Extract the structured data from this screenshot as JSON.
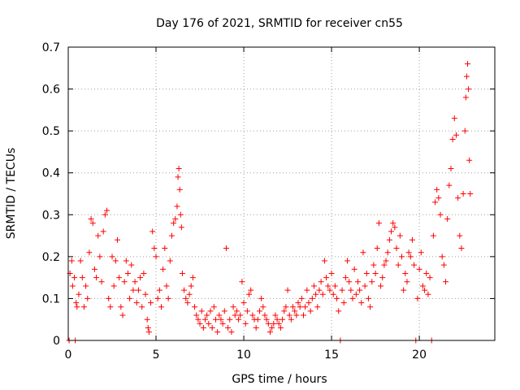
{
  "chart_data": {
    "type": "scatter",
    "title": "Day 176 of 2021, SRMTID for receiver cn55",
    "xlabel": "GPS time / hours",
    "ylabel": "SRMTID / TECUs",
    "xlim": [
      0,
      24.3
    ],
    "ylim": [
      0,
      0.7
    ],
    "xticks": [
      0,
      5,
      10,
      15,
      20
    ],
    "xtick_labels": [
      "0",
      "5",
      "10",
      "15",
      "20"
    ],
    "yticks": [
      0,
      0.1,
      0.2,
      0.3,
      0.4,
      0.5,
      0.6,
      0.7
    ],
    "ytick_labels": [
      "0",
      "0.1",
      "0.2",
      "0.3",
      "0.4",
      "0.5",
      "0.6",
      "0.7"
    ],
    "grid": true,
    "marker": "plus",
    "color": "#ff0000",
    "series": [
      {
        "name": "SRMTID cn55",
        "points": [
          [
            0.05,
            0.0
          ],
          [
            0.1,
            0.16
          ],
          [
            0.2,
            0.19
          ],
          [
            0.25,
            0.13
          ],
          [
            0.35,
            0.15
          ],
          [
            0.4,
            0.0
          ],
          [
            0.45,
            0.09
          ],
          [
            0.5,
            0.08
          ],
          [
            0.6,
            0.11
          ],
          [
            0.7,
            0.19
          ],
          [
            0.8,
            0.15
          ],
          [
            0.9,
            0.08
          ],
          [
            1.0,
            0.13
          ],
          [
            1.1,
            0.1
          ],
          [
            1.2,
            0.21
          ],
          [
            1.3,
            0.29
          ],
          [
            1.4,
            0.28
          ],
          [
            1.5,
            0.17
          ],
          [
            1.6,
            0.15
          ],
          [
            1.7,
            0.25
          ],
          [
            1.8,
            0.2
          ],
          [
            1.9,
            0.14
          ],
          [
            2.0,
            0.26
          ],
          [
            2.1,
            0.3
          ],
          [
            2.2,
            0.31
          ],
          [
            2.3,
            0.1
          ],
          [
            2.4,
            0.08
          ],
          [
            2.5,
            0.2
          ],
          [
            2.6,
            0.13
          ],
          [
            2.7,
            0.19
          ],
          [
            2.8,
            0.24
          ],
          [
            2.9,
            0.15
          ],
          [
            3.0,
            0.08
          ],
          [
            3.1,
            0.06
          ],
          [
            3.2,
            0.14
          ],
          [
            3.3,
            0.19
          ],
          [
            3.4,
            0.16
          ],
          [
            3.5,
            0.1
          ],
          [
            3.6,
            0.18
          ],
          [
            3.7,
            0.12
          ],
          [
            3.8,
            0.14
          ],
          [
            3.9,
            0.09
          ],
          [
            4.0,
            0.12
          ],
          [
            4.1,
            0.15
          ],
          [
            4.2,
            0.08
          ],
          [
            4.3,
            0.16
          ],
          [
            4.4,
            0.11
          ],
          [
            4.5,
            0.05
          ],
          [
            4.55,
            0.03
          ],
          [
            4.6,
            0.02
          ],
          [
            4.7,
            0.09
          ],
          [
            4.8,
            0.26
          ],
          [
            4.9,
            0.22
          ],
          [
            5.0,
            0.2
          ],
          [
            5.1,
            0.1
          ],
          [
            5.2,
            0.12
          ],
          [
            5.3,
            0.08
          ],
          [
            5.4,
            0.17
          ],
          [
            5.5,
            0.22
          ],
          [
            5.6,
            0.13
          ],
          [
            5.7,
            0.1
          ],
          [
            5.8,
            0.19
          ],
          [
            5.9,
            0.25
          ],
          [
            6.0,
            0.28
          ],
          [
            6.1,
            0.29
          ],
          [
            6.2,
            0.32
          ],
          [
            6.25,
            0.39
          ],
          [
            6.3,
            0.41
          ],
          [
            6.35,
            0.36
          ],
          [
            6.4,
            0.3
          ],
          [
            6.45,
            0.27
          ],
          [
            6.5,
            0.16
          ],
          [
            6.6,
            0.12
          ],
          [
            6.7,
            0.1
          ],
          [
            6.8,
            0.09
          ],
          [
            6.9,
            0.11
          ],
          [
            7.0,
            0.13
          ],
          [
            7.1,
            0.15
          ],
          [
            7.2,
            0.08
          ],
          [
            7.3,
            0.06
          ],
          [
            7.4,
            0.05
          ],
          [
            7.5,
            0.04
          ],
          [
            7.6,
            0.07
          ],
          [
            7.7,
            0.03
          ],
          [
            7.8,
            0.05
          ],
          [
            7.9,
            0.06
          ],
          [
            8.0,
            0.04
          ],
          [
            8.1,
            0.07
          ],
          [
            8.2,
            0.03
          ],
          [
            8.3,
            0.08
          ],
          [
            8.4,
            0.05
          ],
          [
            8.5,
            0.02
          ],
          [
            8.6,
            0.06
          ],
          [
            8.7,
            0.05
          ],
          [
            8.8,
            0.04
          ],
          [
            8.9,
            0.07
          ],
          [
            9.0,
            0.22
          ],
          [
            9.1,
            0.03
          ],
          [
            9.2,
            0.05
          ],
          [
            9.3,
            0.02
          ],
          [
            9.4,
            0.08
          ],
          [
            9.5,
            0.06
          ],
          [
            9.6,
            0.07
          ],
          [
            9.7,
            0.05
          ],
          [
            9.8,
            0.06
          ],
          [
            9.9,
            0.14
          ],
          [
            10.0,
            0.09
          ],
          [
            10.1,
            0.04
          ],
          [
            10.2,
            0.07
          ],
          [
            10.3,
            0.11
          ],
          [
            10.4,
            0.12
          ],
          [
            10.5,
            0.06
          ],
          [
            10.6,
            0.05
          ],
          [
            10.7,
            0.03
          ],
          [
            10.8,
            0.05
          ],
          [
            10.9,
            0.07
          ],
          [
            11.0,
            0.1
          ],
          [
            11.1,
            0.08
          ],
          [
            11.2,
            0.06
          ],
          [
            11.3,
            0.05
          ],
          [
            11.4,
            0.04
          ],
          [
            11.5,
            0.02
          ],
          [
            11.6,
            0.03
          ],
          [
            11.7,
            0.04
          ],
          [
            11.8,
            0.06
          ],
          [
            11.9,
            0.05
          ],
          [
            12.0,
            0.04
          ],
          [
            12.1,
            0.03
          ],
          [
            12.2,
            0.05
          ],
          [
            12.3,
            0.07
          ],
          [
            12.4,
            0.08
          ],
          [
            12.5,
            0.12
          ],
          [
            12.6,
            0.06
          ],
          [
            12.7,
            0.05
          ],
          [
            12.8,
            0.08
          ],
          [
            12.9,
            0.07
          ],
          [
            13.0,
            0.06
          ],
          [
            13.1,
            0.09
          ],
          [
            13.2,
            0.08
          ],
          [
            13.3,
            0.1
          ],
          [
            13.4,
            0.06
          ],
          [
            13.5,
            0.08
          ],
          [
            13.6,
            0.12
          ],
          [
            13.7,
            0.09
          ],
          [
            13.8,
            0.07
          ],
          [
            13.9,
            0.1
          ],
          [
            14.0,
            0.13
          ],
          [
            14.1,
            0.11
          ],
          [
            14.2,
            0.08
          ],
          [
            14.3,
            0.12
          ],
          [
            14.4,
            0.14
          ],
          [
            14.5,
            0.11
          ],
          [
            14.6,
            0.19
          ],
          [
            14.7,
            0.15
          ],
          [
            14.8,
            0.13
          ],
          [
            14.9,
            0.12
          ],
          [
            15.0,
            0.16
          ],
          [
            15.1,
            0.11
          ],
          [
            15.2,
            0.13
          ],
          [
            15.3,
            0.1
          ],
          [
            15.4,
            0.07
          ],
          [
            15.5,
            0.0
          ],
          [
            15.6,
            0.12
          ],
          [
            15.7,
            0.09
          ],
          [
            15.8,
            0.15
          ],
          [
            15.9,
            0.19
          ],
          [
            16.0,
            0.14
          ],
          [
            16.1,
            0.12
          ],
          [
            16.2,
            0.1
          ],
          [
            16.3,
            0.17
          ],
          [
            16.4,
            0.11
          ],
          [
            16.5,
            0.14
          ],
          [
            16.6,
            0.12
          ],
          [
            16.7,
            0.09
          ],
          [
            16.8,
            0.21
          ],
          [
            16.9,
            0.13
          ],
          [
            17.0,
            0.16
          ],
          [
            17.1,
            0.1
          ],
          [
            17.2,
            0.08
          ],
          [
            17.3,
            0.14
          ],
          [
            17.4,
            0.18
          ],
          [
            17.5,
            0.16
          ],
          [
            17.6,
            0.22
          ],
          [
            17.7,
            0.28
          ],
          [
            17.8,
            0.13
          ],
          [
            17.9,
            0.15
          ],
          [
            18.0,
            0.18
          ],
          [
            18.1,
            0.19
          ],
          [
            18.2,
            0.21
          ],
          [
            18.3,
            0.24
          ],
          [
            18.4,
            0.26
          ],
          [
            18.5,
            0.28
          ],
          [
            18.6,
            0.27
          ],
          [
            18.7,
            0.22
          ],
          [
            18.8,
            0.18
          ],
          [
            18.9,
            0.25
          ],
          [
            19.0,
            0.2
          ],
          [
            19.1,
            0.12
          ],
          [
            19.2,
            0.16
          ],
          [
            19.3,
            0.14
          ],
          [
            19.4,
            0.21
          ],
          [
            19.5,
            0.2
          ],
          [
            19.6,
            0.24
          ],
          [
            19.7,
            0.18
          ],
          [
            19.8,
            0.0
          ],
          [
            19.9,
            0.1
          ],
          [
            20.0,
            0.17
          ],
          [
            20.1,
            0.21
          ],
          [
            20.2,
            0.13
          ],
          [
            20.3,
            0.12
          ],
          [
            20.4,
            0.16
          ],
          [
            20.5,
            0.11
          ],
          [
            20.6,
            0.15
          ],
          [
            20.7,
            0.0
          ],
          [
            20.8,
            0.25
          ],
          [
            20.9,
            0.33
          ],
          [
            21.0,
            0.36
          ],
          [
            21.1,
            0.34
          ],
          [
            21.2,
            0.3
          ],
          [
            21.3,
            0.2
          ],
          [
            21.4,
            0.18
          ],
          [
            21.5,
            0.14
          ],
          [
            21.6,
            0.29
          ],
          [
            21.7,
            0.37
          ],
          [
            21.8,
            0.41
          ],
          [
            21.9,
            0.48
          ],
          [
            22.0,
            0.53
          ],
          [
            22.1,
            0.49
          ],
          [
            22.2,
            0.34
          ],
          [
            22.3,
            0.25
          ],
          [
            22.4,
            0.22
          ],
          [
            22.5,
            0.35
          ],
          [
            22.6,
            0.5
          ],
          [
            22.65,
            0.58
          ],
          [
            22.7,
            0.63
          ],
          [
            22.75,
            0.66
          ],
          [
            22.8,
            0.6
          ],
          [
            22.85,
            0.43
          ],
          [
            22.9,
            0.35
          ]
        ]
      }
    ]
  }
}
